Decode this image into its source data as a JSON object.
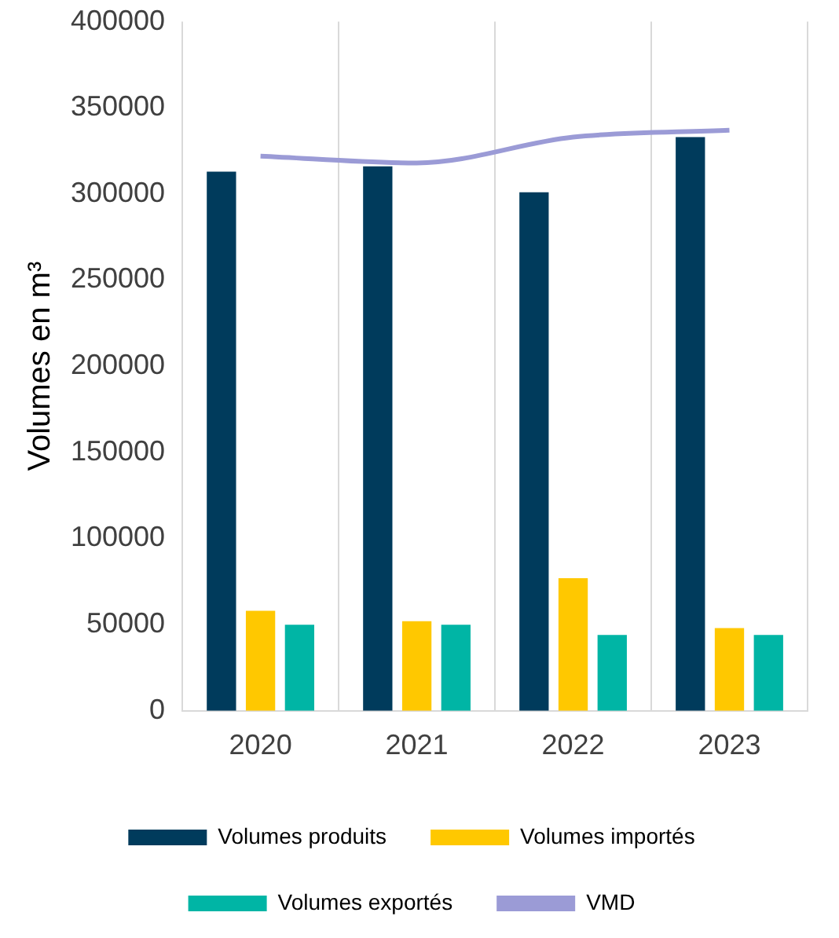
{
  "chart_data": {
    "type": "bar",
    "ylabel": "Volumes en m³",
    "categories": [
      "2020",
      "2021",
      "2022",
      "2023"
    ],
    "series": [
      {
        "name": "Volumes produits",
        "color": "#003b5c",
        "values": [
          313000,
          316000,
          301000,
          333000
        ]
      },
      {
        "name": "Volumes importés",
        "color": "#ffc800",
        "values": [
          58000,
          52000,
          77000,
          48000
        ]
      },
      {
        "name": "Volumes exportés",
        "color": "#00b5a5",
        "values": [
          50000,
          50000,
          44000,
          44000
        ]
      },
      {
        "name": "VMD",
        "type": "line",
        "color": "#9b9bd6",
        "values": [
          322000,
          318000,
          333000,
          337000
        ],
        "marker": "none"
      }
    ],
    "ylim": [
      0,
      400000
    ],
    "yticks": [
      0,
      50000,
      100000,
      150000,
      200000,
      250000,
      300000,
      350000,
      400000
    ],
    "grid": "x",
    "legend": "bottom"
  }
}
